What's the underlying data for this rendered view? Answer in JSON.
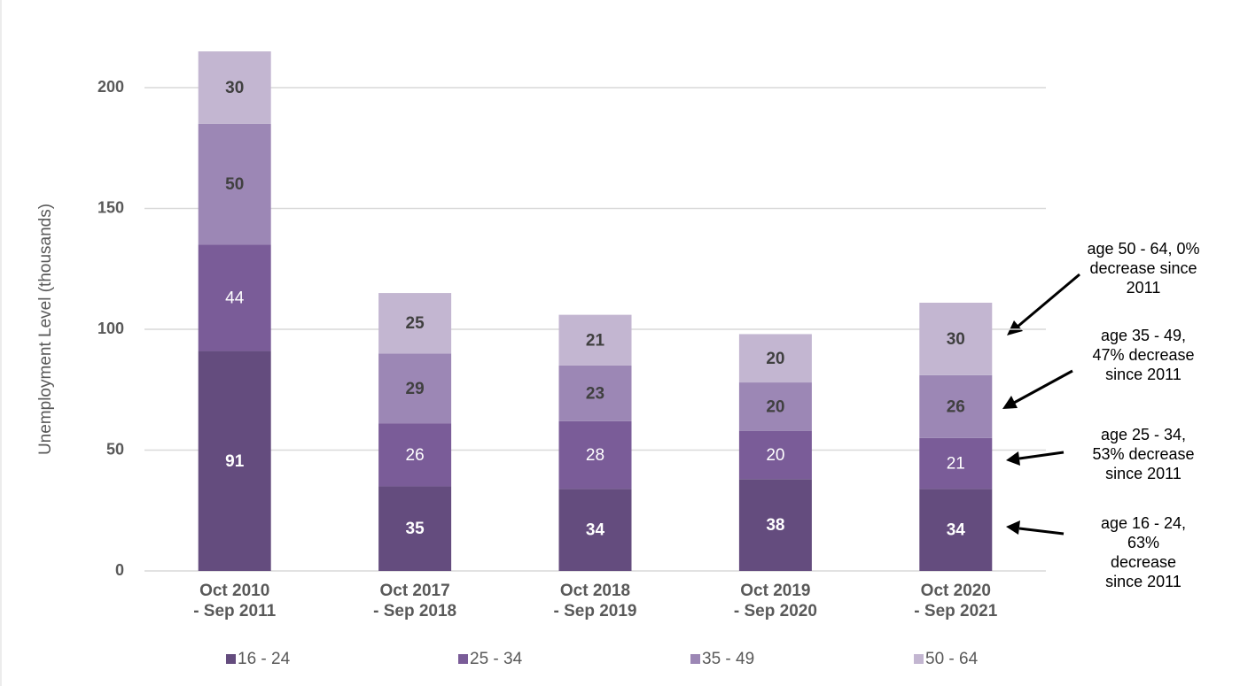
{
  "chart_data": {
    "type": "stacked_bar",
    "y_label": "Unemployment Level (thousands)",
    "categories": [
      "Oct 2010\n- Sep 2011",
      "Oct 2017\n- Sep 2018",
      "Oct 2018\n- Sep 2019",
      "Oct 2019\n- Sep 2020",
      "Oct 2020\n- Sep 2021"
    ],
    "series": [
      {
        "name": "16 - 24",
        "color": "#644c7e",
        "values": [
          91,
          35,
          34,
          38,
          34
        ]
      },
      {
        "name": "25 - 34",
        "color": "#7a5c98",
        "values": [
          44,
          26,
          28,
          20,
          21
        ]
      },
      {
        "name": "35 - 49",
        "color": "#9c87b5",
        "values": [
          50,
          29,
          23,
          20,
          26
        ]
      },
      {
        "name": "50 - 64",
        "color": "#c3b6d1",
        "values": [
          30,
          25,
          21,
          20,
          30
        ]
      }
    ],
    "ylim": [
      0,
      215
    ],
    "yticks": [
      0,
      50,
      100,
      150,
      200
    ],
    "grid": true,
    "annotations": [
      "age 50 - 64, 0%\ndecrease since\n2011",
      "age 35 - 49,\n47% decrease\nsince 2011",
      "age 25 - 34,\n53% decrease\nsince 2011",
      "age 16 - 24,\n63%\ndecrease\nsince 2011"
    ]
  }
}
